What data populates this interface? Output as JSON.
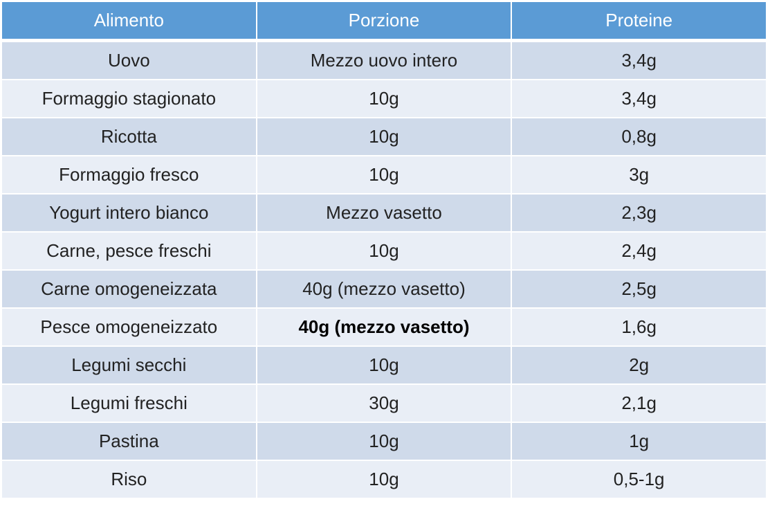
{
  "table": {
    "header": [
      "Alimento",
      "Porzione",
      "Proteine"
    ],
    "rows": [
      [
        "Uovo",
        "Mezzo uovo intero",
        "3,4g"
      ],
      [
        "Formaggio stagionato",
        "10g",
        "3,4g"
      ],
      [
        "Ricotta",
        "10g",
        "0,8g"
      ],
      [
        "Formaggio fresco",
        "10g",
        "3g"
      ],
      [
        "Yogurt intero bianco",
        "Mezzo vasetto",
        "2,3g"
      ],
      [
        "Carne, pesce freschi",
        "10g",
        "2,4g"
      ],
      [
        "Carne omogeneizzata",
        "40g (mezzo vasetto)",
        "2,5g"
      ],
      [
        "Pesce omogeneizzato",
        "40g (mezzo vasetto)",
        "1,6g"
      ],
      [
        "Legumi secchi",
        "10g",
        "2g"
      ],
      [
        "Legumi freschi",
        "30g",
        "2,1g"
      ],
      [
        "Pastina",
        "10g",
        "1g"
      ],
      [
        "Riso",
        "10g",
        "0,5-1g"
      ]
    ]
  }
}
